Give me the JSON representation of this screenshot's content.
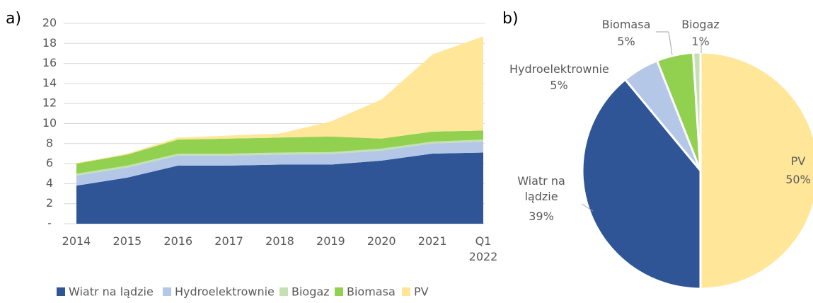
{
  "chart_data": [
    {
      "type": "area",
      "label": "a)",
      "categories": [
        "2014",
        "2015",
        "2016",
        "2017",
        "2018",
        "2019",
        "2020",
        "2021",
        "Q1 2022"
      ],
      "series": [
        {
          "name": "Wiatr na lądzie",
          "color": "#2f5597",
          "values": [
            3.8,
            4.6,
            5.8,
            5.8,
            5.9,
            5.9,
            6.3,
            7.0,
            7.1
          ]
        },
        {
          "name": "Hydroelektrownie",
          "color": "#b4c7e7",
          "values": [
            1.0,
            1.0,
            1.0,
            1.0,
            1.0,
            1.05,
            1.0,
            1.0,
            1.1
          ]
        },
        {
          "name": "Biogaz",
          "color": "#c5e0b4",
          "values": [
            0.2,
            0.2,
            0.2,
            0.2,
            0.2,
            0.2,
            0.2,
            0.2,
            0.2
          ]
        },
        {
          "name": "Biomasa",
          "color": "#92d050",
          "values": [
            1.0,
            1.1,
            1.4,
            1.5,
            1.5,
            1.55,
            1.0,
            1.0,
            0.9
          ]
        },
        {
          "name": "PV",
          "color": "#ffe699",
          "values": [
            0.05,
            0.1,
            0.2,
            0.3,
            0.4,
            1.5,
            3.9,
            7.7,
            9.4
          ]
        }
      ],
      "ylim": [
        0,
        20
      ],
      "yticks": [
        {
          "value": 0,
          "label": "-"
        },
        2,
        4,
        6,
        8,
        10,
        12,
        14,
        16,
        18,
        20
      ],
      "grid": true,
      "legend": "bottom"
    },
    {
      "type": "pie",
      "label": "b)",
      "categories": [
        "PV",
        "Wiatr na lądzie",
        "Hydroelektrownie",
        "Biomasa",
        "Biogaz"
      ],
      "values": [
        50,
        39,
        5,
        5,
        1
      ],
      "value_labels": [
        "50%",
        "39%",
        "5%",
        "5%",
        "1%"
      ],
      "colors": [
        "#ffe699",
        "#2f5597",
        "#b4c7e7",
        "#92d050",
        "#c5e0b4"
      ]
    }
  ]
}
